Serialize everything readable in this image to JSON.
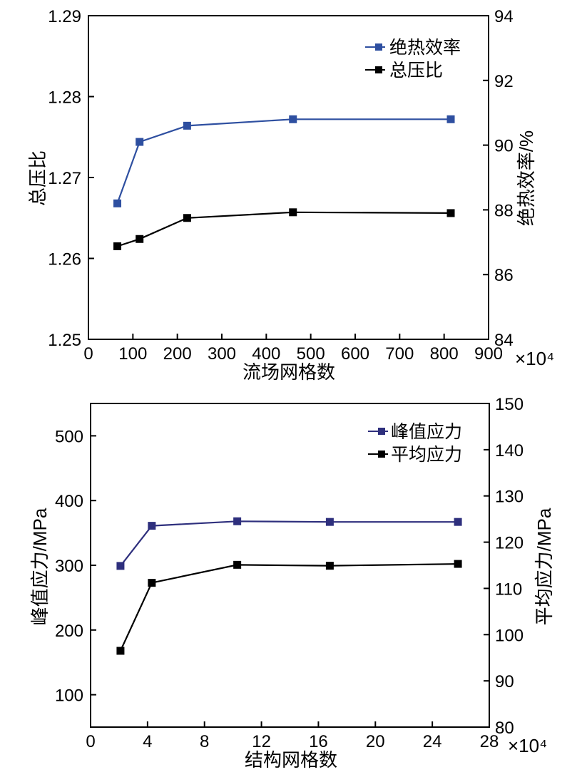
{
  "colors": {
    "blue": "#2E4FA0",
    "navy": "#2E2F7D",
    "black": "#000000"
  },
  "chart_data": [
    {
      "type": "line",
      "xlabel": "流场网格数",
      "x_multiplier": "×10⁴",
      "xlim": [
        0,
        900
      ],
      "x_ticks": [
        "0",
        "100",
        "200",
        "300",
        "400",
        "500",
        "600",
        "700",
        "800",
        "900"
      ],
      "ylabel_left": "总压比",
      "ylim_left": [
        1.25,
        1.29
      ],
      "y_ticks_left": [
        "1.25",
        "1.26",
        "1.27",
        "1.28",
        "1.29"
      ],
      "ylabel_right": "绝热效率/%",
      "ylim_right": [
        84,
        94
      ],
      "y_ticks_right": [
        "84",
        "86",
        "88",
        "90",
        "92",
        "94"
      ],
      "legend": "top-right",
      "series": [
        {
          "name": "绝热效率",
          "axis": "right",
          "color": "#2E4FA0",
          "x": [
            65,
            115,
            222,
            460,
            815
          ],
          "y": [
            88.2,
            90.1,
            90.6,
            90.8,
            90.8
          ]
        },
        {
          "name": "总压比",
          "axis": "left",
          "color": "#000000",
          "x": [
            65,
            115,
            222,
            460,
            815
          ],
          "y": [
            1.2615,
            1.2624,
            1.265,
            1.2657,
            1.2656
          ]
        }
      ]
    },
    {
      "type": "line",
      "xlabel": "结构网格数",
      "x_multiplier": "×10⁴",
      "xlim": [
        0,
        28
      ],
      "x_ticks": [
        "0",
        "4",
        "8",
        "12",
        "16",
        "20",
        "24",
        "28"
      ],
      "ylabel_left": "峰值应力/MPa",
      "ylim_left": [
        50,
        550
      ],
      "y_ticks_left": [
        "100",
        "200",
        "300",
        "400",
        "500"
      ],
      "ylabel_right": "平均应力/MPa",
      "ylim_right": [
        80,
        150
      ],
      "y_ticks_right": [
        "80",
        "90",
        "100",
        "110",
        "120",
        "130",
        "140",
        "150"
      ],
      "legend": "top-right",
      "series": [
        {
          "name": "峰值应力",
          "axis": "left",
          "color": "#2E2F7D",
          "x": [
            2.1,
            4.3,
            10.3,
            16.8,
            25.8
          ],
          "y": [
            299,
            361,
            368,
            367,
            367
          ]
        },
        {
          "name": "平均应力",
          "axis": "right",
          "color": "#000000",
          "x": [
            2.1,
            4.3,
            10.3,
            16.8,
            25.8
          ],
          "y": [
            96.5,
            111.2,
            115.1,
            114.9,
            115.3
          ]
        }
      ]
    }
  ]
}
